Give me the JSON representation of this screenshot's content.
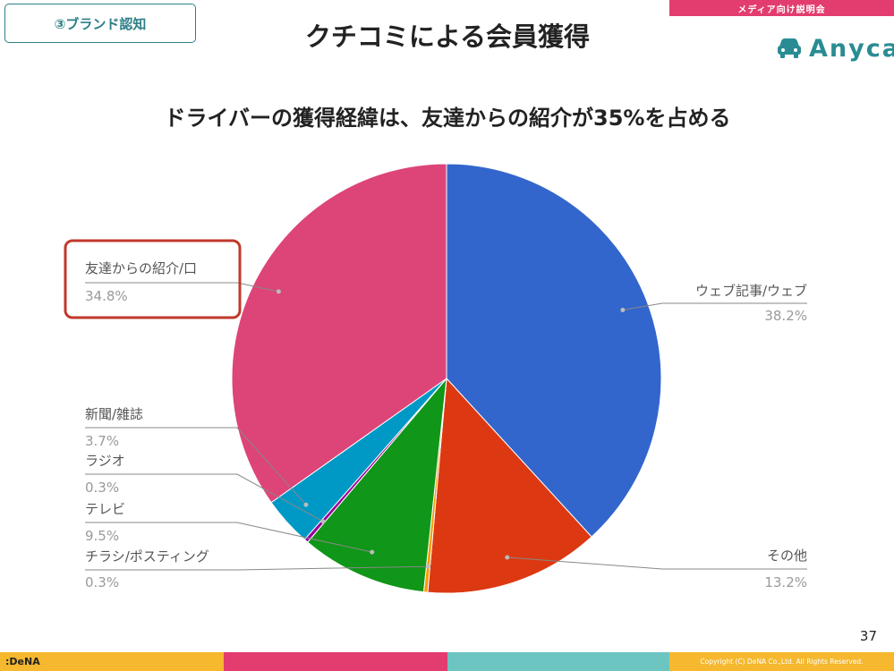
{
  "header": {
    "ribbon": "メディア向け説明会",
    "section_tag": "③ブランド認知",
    "title": "クチコミによる会員獲得",
    "brand_name": "Anyca"
  },
  "subtitle": "ドライバーの獲得経緯は、友達からの紹介が35%を占める",
  "page_number": "37",
  "footer": {
    "logo": ":DeNA",
    "copyright": "Copyright (C) DeNA Co.,Ltd. All Rights Reserved.",
    "colors": [
      "#f5b82e",
      "#e23d6e",
      "#6cc5c1",
      "#f5b82e"
    ]
  },
  "highlight_color": "#c0392b",
  "chart_data": {
    "type": "pie",
    "start_angle": 0,
    "direction": "clockwise",
    "slices": [
      {
        "name": "ウェブ記事/ウェブ",
        "value": 38.2,
        "label": "38.2%",
        "color": "#3366cc"
      },
      {
        "name": "その他",
        "value": 13.2,
        "label": "13.2%",
        "color": "#dc3912"
      },
      {
        "name": "チラシ/ポスティング",
        "value": 0.3,
        "label": "0.3%",
        "color": "#ff9900"
      },
      {
        "name": "テレビ",
        "value": 9.5,
        "label": "9.5%",
        "color": "#109618"
      },
      {
        "name": "ラジオ",
        "value": 0.3,
        "label": "0.3%",
        "color": "#990099"
      },
      {
        "name": "新聞/雑誌",
        "value": 3.7,
        "label": "3.7%",
        "color": "#0099c6"
      },
      {
        "name": "友達からの紹介/口",
        "value": 34.8,
        "label": "34.8%",
        "color": "#dd4477",
        "highlighted": true
      }
    ]
  }
}
